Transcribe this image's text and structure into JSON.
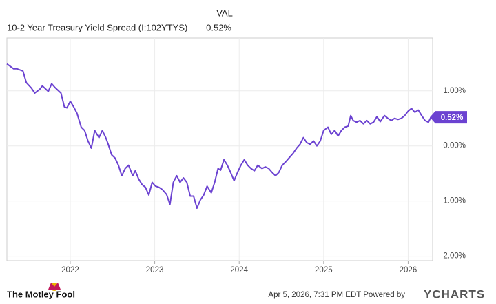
{
  "chart_data": {
    "type": "line",
    "title": "10-2 Year Treasury Yield Spread (I:102YTYS)",
    "value_column": "VAL",
    "last_value_label": "0.52%",
    "color": "#6b42d1",
    "grid": true,
    "xlim": [
      2021.25,
      2026.29
    ],
    "xticks": [
      2022,
      2023,
      2024,
      2025,
      2026
    ],
    "ylim": [
      -2.08,
      1.96
    ],
    "yticks": [
      {
        "value": 1,
        "label": "1.00%"
      },
      {
        "value": 0,
        "label": "0.00%"
      },
      {
        "value": -1,
        "label": "-1.00%"
      },
      {
        "value": -2,
        "label": "-2.00%"
      }
    ],
    "x": [
      2021.25,
      2021.33,
      2021.37,
      2021.44,
      2021.48,
      2021.54,
      2021.58,
      2021.64,
      2021.67,
      2021.74,
      2021.78,
      2021.82,
      2021.89,
      2021.93,
      2021.96,
      2022.0,
      2022.04,
      2022.08,
      2022.13,
      2022.17,
      2022.21,
      2022.25,
      2022.29,
      2022.34,
      2022.38,
      2022.42,
      2022.45,
      2022.49,
      2022.53,
      2022.57,
      2022.61,
      2022.65,
      2022.69,
      2022.74,
      2022.77,
      2022.81,
      2022.85,
      2022.89,
      2022.93,
      2022.97,
      2023.01,
      2023.05,
      2023.09,
      2023.14,
      2023.18,
      2023.22,
      2023.26,
      2023.3,
      2023.34,
      2023.38,
      2023.42,
      2023.46,
      2023.5,
      2023.54,
      2023.58,
      2023.62,
      2023.67,
      2023.71,
      2023.75,
      2023.78,
      2023.82,
      2023.86,
      2023.89,
      2023.94,
      2023.98,
      2024.02,
      2024.06,
      2024.1,
      2024.14,
      2024.18,
      2024.22,
      2024.27,
      2024.31,
      2024.35,
      2024.39,
      2024.43,
      2024.47,
      2024.51,
      2024.55,
      2024.6,
      2024.64,
      2024.68,
      2024.72,
      2024.76,
      2024.8,
      2024.84,
      2024.88,
      2024.92,
      2024.96,
      2025.0,
      2025.05,
      2025.09,
      2025.13,
      2025.17,
      2025.21,
      2025.25,
      2025.29,
      2025.32,
      2025.35,
      2025.39,
      2025.43,
      2025.47,
      2025.51,
      2025.55,
      2025.59,
      2025.63,
      2025.67,
      2025.72,
      2025.76,
      2025.8,
      2025.84,
      2025.88,
      2025.92,
      2025.96,
      2026.0,
      2026.04,
      2026.08,
      2026.12,
      2026.16,
      2026.2,
      2026.24,
      2026.27
    ],
    "values": [
      1.49,
      1.4,
      1.4,
      1.36,
      1.15,
      1.05,
      0.96,
      1.03,
      1.09,
      0.99,
      1.13,
      1.06,
      0.96,
      0.71,
      0.69,
      0.81,
      0.71,
      0.59,
      0.34,
      0.28,
      0.09,
      -0.04,
      0.28,
      0.15,
      0.28,
      0.15,
      0.03,
      -0.16,
      -0.22,
      -0.35,
      -0.54,
      -0.41,
      -0.35,
      -0.54,
      -0.45,
      -0.6,
      -0.7,
      -0.75,
      -0.89,
      -0.66,
      -0.73,
      -0.75,
      -0.79,
      -0.88,
      -1.06,
      -0.66,
      -0.54,
      -0.66,
      -0.58,
      -0.66,
      -0.91,
      -0.91,
      -1.13,
      -0.98,
      -0.89,
      -0.73,
      -0.85,
      -0.66,
      -0.41,
      -0.44,
      -0.25,
      -0.35,
      -0.45,
      -0.63,
      -0.48,
      -0.35,
      -0.25,
      -0.35,
      -0.41,
      -0.45,
      -0.35,
      -0.41,
      -0.38,
      -0.41,
      -0.48,
      -0.54,
      -0.48,
      -0.35,
      -0.29,
      -0.2,
      -0.13,
      -0.04,
      0.03,
      0.15,
      0.06,
      0.03,
      0.09,
      0.0,
      0.09,
      0.28,
      0.34,
      0.21,
      0.28,
      0.18,
      0.28,
      0.34,
      0.36,
      0.55,
      0.46,
      0.43,
      0.46,
      0.4,
      0.46,
      0.4,
      0.43,
      0.53,
      0.44,
      0.55,
      0.5,
      0.46,
      0.5,
      0.48,
      0.5,
      0.55,
      0.63,
      0.68,
      0.61,
      0.65,
      0.55,
      0.46,
      0.43,
      0.52
    ]
  },
  "footer": {
    "brand": "The Motley Fool",
    "timestamp": "Apr 5, 2026, 7:31 PM EDT Powered by",
    "provider": "YCHARTS"
  }
}
